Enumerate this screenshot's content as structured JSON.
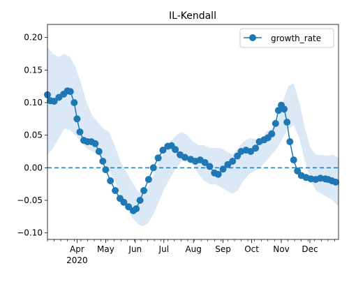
{
  "chart_data": {
    "type": "line",
    "title": "IL-Kendall",
    "xlabel": "",
    "ylabel": "",
    "x_unit": "date",
    "xlim": [
      "2020-03-01",
      "2020-12-31"
    ],
    "ylim": [
      -0.11,
      0.22
    ],
    "grid": false,
    "legend": {
      "position": "top-right",
      "entries": [
        "growth_rate"
      ]
    },
    "colors": {
      "series": "#1f77b4",
      "band": "#dbe8f5",
      "baseline": "#1f77b4"
    },
    "x_ticks": [
      {
        "date": "2020-04-01",
        "label": "Apr",
        "sublabel": "2020"
      },
      {
        "date": "2020-05-01",
        "label": "May"
      },
      {
        "date": "2020-06-01",
        "label": "Jun"
      },
      {
        "date": "2020-07-01",
        "label": "Jul"
      },
      {
        "date": "2020-08-01",
        "label": "Aug"
      },
      {
        "date": "2020-09-01",
        "label": "Sep"
      },
      {
        "date": "2020-10-01",
        "label": "Oct"
      },
      {
        "date": "2020-11-01",
        "label": "Nov"
      },
      {
        "date": "2020-12-01",
        "label": "Dec"
      }
    ],
    "y_ticks": [
      {
        "value": 0.2,
        "label": "0.20"
      },
      {
        "value": 0.15,
        "label": "0.15"
      },
      {
        "value": 0.1,
        "label": "0.10"
      },
      {
        "value": 0.05,
        "label": "0.05"
      },
      {
        "value": 0.0,
        "label": "0.00"
      },
      {
        "value": -0.05,
        "label": "−0.05"
      },
      {
        "value": -0.1,
        "label": "−0.10"
      }
    ],
    "reference_line": {
      "y": 0.0,
      "style": "dashed"
    },
    "series": [
      {
        "name": "growth_rate",
        "marker": "circle",
        "points": [
          {
            "x": "2020-03-01",
            "y": 0.112
          },
          {
            "x": "2020-03-04",
            "y": 0.103
          },
          {
            "x": "2020-03-08",
            "y": 0.102
          },
          {
            "x": "2020-03-13",
            "y": 0.108
          },
          {
            "x": "2020-03-18",
            "y": 0.113
          },
          {
            "x": "2020-03-22",
            "y": 0.118
          },
          {
            "x": "2020-03-25",
            "y": 0.117
          },
          {
            "x": "2020-03-29",
            "y": 0.1
          },
          {
            "x": "2020-04-01",
            "y": 0.075
          },
          {
            "x": "2020-04-04",
            "y": 0.055
          },
          {
            "x": "2020-04-08",
            "y": 0.042
          },
          {
            "x": "2020-04-12",
            "y": 0.04
          },
          {
            "x": "2020-04-16",
            "y": 0.04
          },
          {
            "x": "2020-04-20",
            "y": 0.037
          },
          {
            "x": "2020-04-24",
            "y": 0.025
          },
          {
            "x": "2020-04-28",
            "y": 0.01
          },
          {
            "x": "2020-05-01",
            "y": -0.003
          },
          {
            "x": "2020-05-06",
            "y": -0.02
          },
          {
            "x": "2020-05-11",
            "y": -0.035
          },
          {
            "x": "2020-05-16",
            "y": -0.047
          },
          {
            "x": "2020-05-20",
            "y": -0.053
          },
          {
            "x": "2020-05-25",
            "y": -0.06
          },
          {
            "x": "2020-05-30",
            "y": -0.066
          },
          {
            "x": "2020-06-02",
            "y": -0.063
          },
          {
            "x": "2020-06-06",
            "y": -0.05
          },
          {
            "x": "2020-06-10",
            "y": -0.035
          },
          {
            "x": "2020-06-15",
            "y": -0.018
          },
          {
            "x": "2020-06-20",
            "y": 0.0
          },
          {
            "x": "2020-06-25",
            "y": 0.015
          },
          {
            "x": "2020-06-30",
            "y": 0.027
          },
          {
            "x": "2020-07-05",
            "y": 0.033
          },
          {
            "x": "2020-07-09",
            "y": 0.034
          },
          {
            "x": "2020-07-13",
            "y": 0.028
          },
          {
            "x": "2020-07-18",
            "y": 0.02
          },
          {
            "x": "2020-07-23",
            "y": 0.016
          },
          {
            "x": "2020-07-29",
            "y": 0.013
          },
          {
            "x": "2020-08-03",
            "y": 0.01
          },
          {
            "x": "2020-08-08",
            "y": 0.012
          },
          {
            "x": "2020-08-13",
            "y": 0.008
          },
          {
            "x": "2020-08-18",
            "y": 0.002
          },
          {
            "x": "2020-08-23",
            "y": -0.008
          },
          {
            "x": "2020-08-27",
            "y": -0.01
          },
          {
            "x": "2020-09-01",
            "y": -0.002
          },
          {
            "x": "2020-09-06",
            "y": 0.005
          },
          {
            "x": "2020-09-11",
            "y": 0.01
          },
          {
            "x": "2020-09-16",
            "y": 0.018
          },
          {
            "x": "2020-09-20",
            "y": 0.025
          },
          {
            "x": "2020-09-25",
            "y": 0.027
          },
          {
            "x": "2020-09-30",
            "y": 0.025
          },
          {
            "x": "2020-10-05",
            "y": 0.03
          },
          {
            "x": "2020-10-09",
            "y": 0.04
          },
          {
            "x": "2020-10-14",
            "y": 0.043
          },
          {
            "x": "2020-10-18",
            "y": 0.046
          },
          {
            "x": "2020-10-22",
            "y": 0.052
          },
          {
            "x": "2020-10-26",
            "y": 0.068
          },
          {
            "x": "2020-10-29",
            "y": 0.088
          },
          {
            "x": "2020-11-01",
            "y": 0.096
          },
          {
            "x": "2020-11-04",
            "y": 0.09
          },
          {
            "x": "2020-11-07",
            "y": 0.07
          },
          {
            "x": "2020-11-10",
            "y": 0.04
          },
          {
            "x": "2020-11-14",
            "y": 0.012
          },
          {
            "x": "2020-11-18",
            "y": -0.005
          },
          {
            "x": "2020-11-22",
            "y": -0.012
          },
          {
            "x": "2020-11-27",
            "y": -0.015
          },
          {
            "x": "2020-12-02",
            "y": -0.017
          },
          {
            "x": "2020-12-07",
            "y": -0.018
          },
          {
            "x": "2020-12-12",
            "y": -0.016
          },
          {
            "x": "2020-12-17",
            "y": -0.017
          },
          {
            "x": "2020-12-20",
            "y": -0.018
          },
          {
            "x": "2020-12-24",
            "y": -0.02
          },
          {
            "x": "2020-12-28",
            "y": -0.022
          }
        ],
        "band_lower": [
          0.02,
          0.03,
          0.045,
          0.06,
          0.058,
          0.05,
          0.04,
          0.03,
          0.025,
          0.02,
          0.01,
          -0.005,
          -0.02,
          -0.04,
          -0.06,
          -0.075,
          -0.085,
          -0.09,
          -0.085,
          -0.07,
          -0.05,
          -0.03,
          -0.015,
          0.0,
          0.01,
          0.01,
          0.005,
          -0.01,
          -0.02,
          -0.025,
          -0.025,
          -0.03,
          -0.035,
          -0.04,
          -0.035,
          -0.02,
          -0.01,
          -0.005,
          0.0,
          0.01,
          0.02,
          0.03,
          0.045,
          0.06,
          0.065,
          0.045,
          0.01,
          -0.02,
          -0.035,
          -0.04,
          -0.045,
          -0.05,
          -0.06
        ],
        "band_upper": [
          0.185,
          0.175,
          0.17,
          0.175,
          0.17,
          0.155,
          0.13,
          0.1,
          0.08,
          0.07,
          0.06,
          0.055,
          0.035,
          0.01,
          -0.005,
          -0.02,
          -0.035,
          -0.04,
          -0.03,
          -0.01,
          0.01,
          0.025,
          0.04,
          0.05,
          0.055,
          0.05,
          0.04,
          0.035,
          0.035,
          0.03,
          0.03,
          0.03,
          0.025,
          0.02,
          0.03,
          0.04,
          0.045,
          0.045,
          0.04,
          0.055,
          0.06,
          0.07,
          0.1,
          0.125,
          0.13,
          0.1,
          0.06,
          0.03,
          0.02,
          0.02,
          0.018,
          0.02,
          0.015
        ]
      }
    ]
  }
}
